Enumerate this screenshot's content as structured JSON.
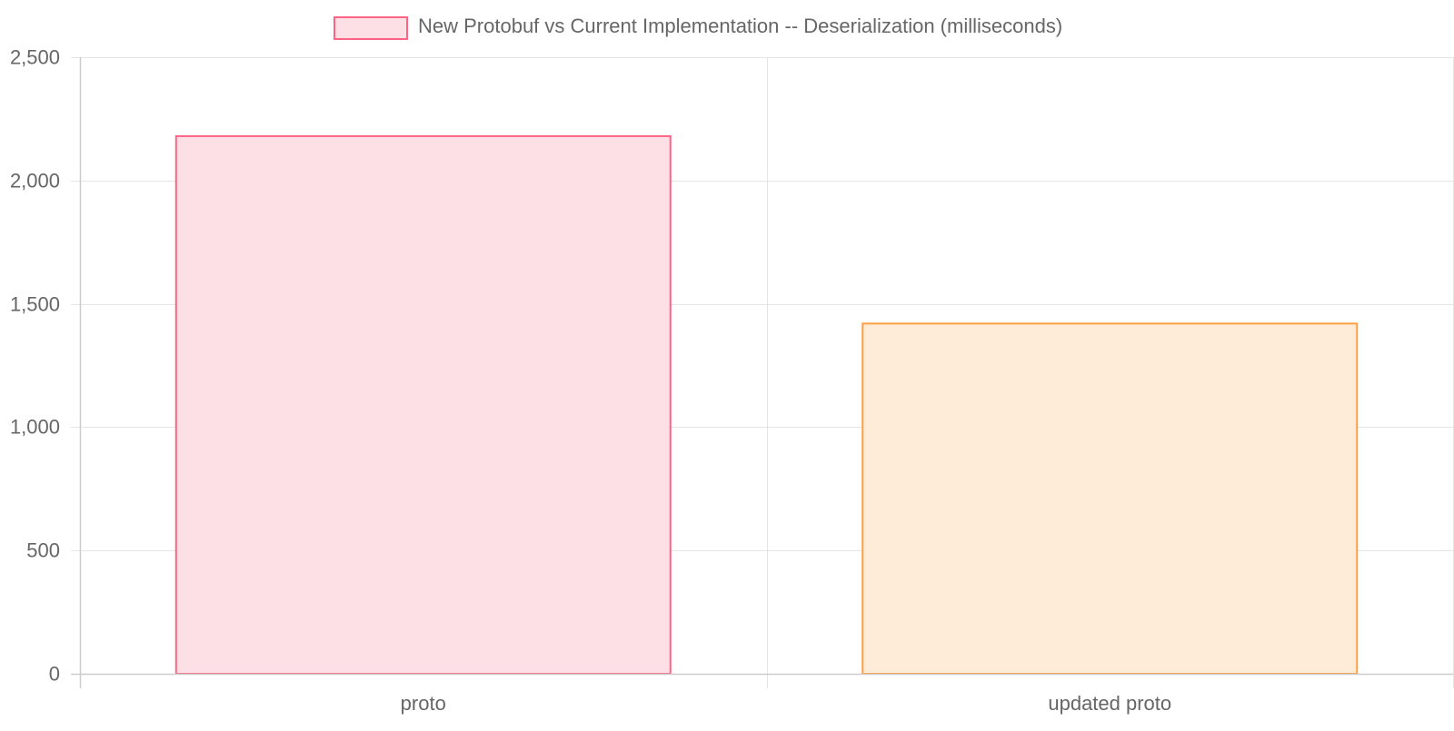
{
  "chart_data": {
    "type": "bar",
    "categories": [
      "proto",
      "updated proto"
    ],
    "series": [
      {
        "name": "New Protobuf vs Current Implementation -- Deserialization (milliseconds)",
        "values": [
          2180,
          1420
        ]
      }
    ],
    "ylim": [
      0,
      2500
    ],
    "yticks": [
      "0",
      "500",
      "1,000",
      "1,500",
      "2,000",
      "2,500"
    ],
    "grid": true,
    "legend_position": "top-center",
    "bar_colors": [
      {
        "fill": "#fde0e6",
        "stroke": "#ff6384"
      },
      {
        "fill": "#feecd9",
        "stroke": "#ff9f40"
      }
    ],
    "legend_swatch": {
      "fill": "#fde0e6",
      "stroke": "#ff6384"
    },
    "grid_color": "#e5e5e5",
    "axis_color": "#cccccc",
    "text_color": "#666666"
  }
}
